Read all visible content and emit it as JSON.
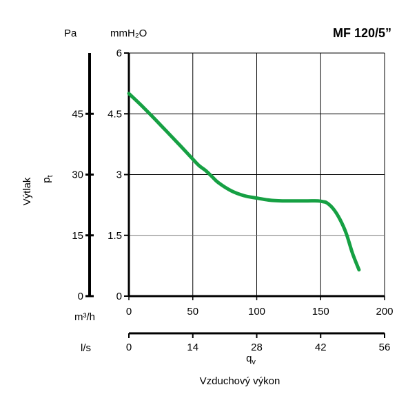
{
  "chart_data": {
    "type": "line",
    "title": "MF 120/5”",
    "ylabel": "Výtlak",
    "ylabel_symbol": "p",
    "ylabel_symbol_sub": "t",
    "xlabel": "Vzduchový výkon",
    "xlabel_symbol": "q",
    "xlabel_symbol_sub": "v",
    "y_units": {
      "primary": "mmH₂O",
      "secondary": "Pa"
    },
    "x_units": {
      "primary": "m³/h",
      "secondary": "l/s"
    },
    "xlim": [
      0,
      200
    ],
    "ylim": [
      0,
      6
    ],
    "x_ticks": [
      "0",
      "50",
      "100",
      "150",
      "200"
    ],
    "x2_ticks": [
      "0",
      "14",
      "28",
      "42",
      "56"
    ],
    "y_ticks": [
      "0",
      "1.5",
      "3",
      "4.5",
      "6"
    ],
    "y2_ticks": [
      "0",
      "15",
      "30",
      "45"
    ],
    "grid": true,
    "series": [
      {
        "color": "#16a043",
        "x": [
          0,
          10,
          20,
          30,
          40,
          50,
          55,
          60,
          65,
          70,
          80,
          90,
          100,
          110,
          120,
          130,
          140,
          148,
          152,
          155,
          160,
          165,
          170,
          175,
          180
        ],
        "y": [
          5.0,
          4.7,
          4.38,
          4.05,
          3.72,
          3.38,
          3.22,
          3.1,
          2.95,
          2.8,
          2.6,
          2.48,
          2.42,
          2.37,
          2.35,
          2.35,
          2.35,
          2.35,
          2.33,
          2.3,
          2.15,
          1.9,
          1.55,
          1.05,
          0.65
        ]
      }
    ]
  }
}
